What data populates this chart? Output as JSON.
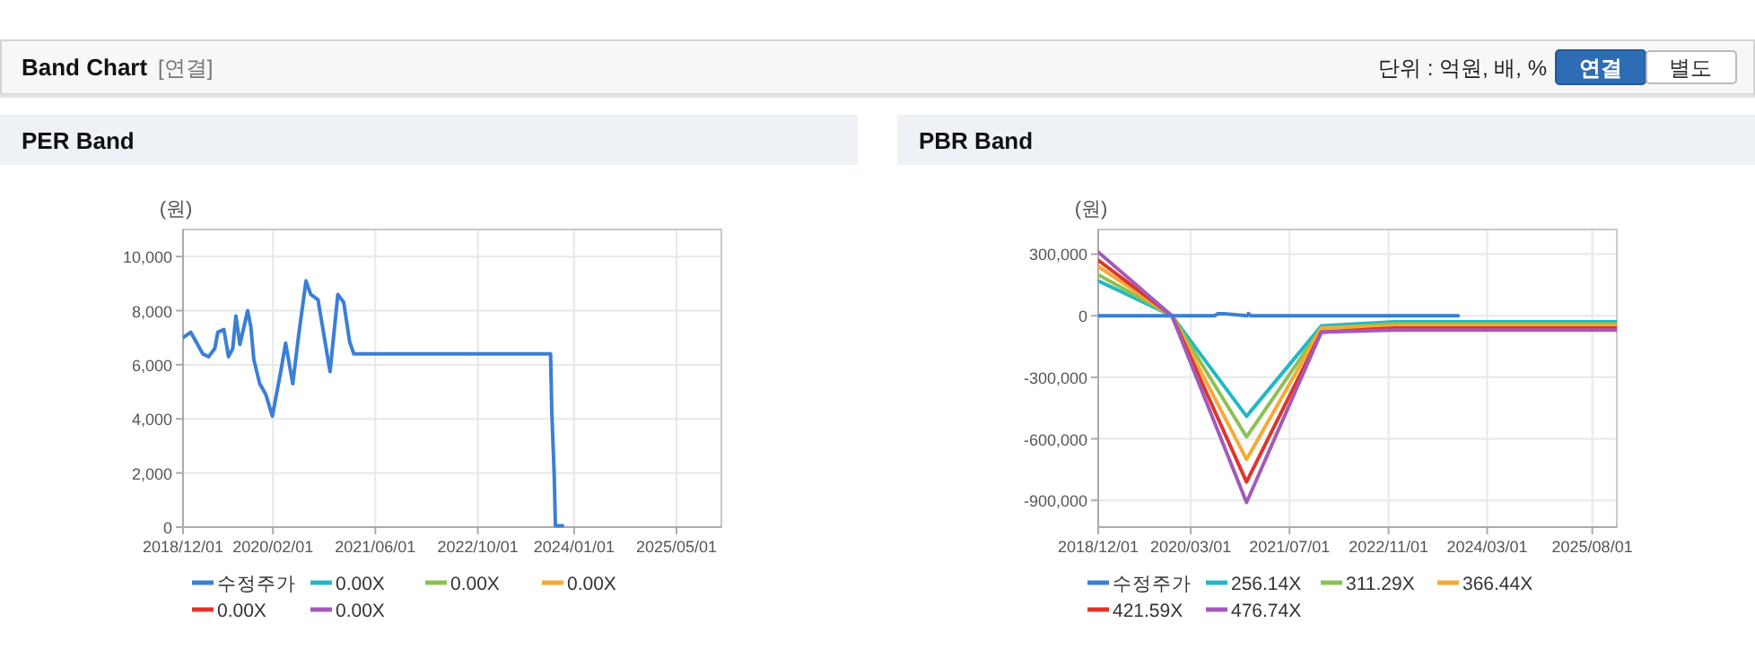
{
  "chart_data": [
    {
      "type": "other",
      "title": "Band Chart",
      "annotations": [
        "[연결]",
        "단위 : 억원, 배, %",
        "연결",
        "별도"
      ]
    },
    {
      "type": "line",
      "title": "PER Band",
      "ylabel": "(원)",
      "xlim": [
        "2018-12-01",
        "2025-11-30"
      ],
      "xticks": [
        {
          "value": "2018-12-01",
          "label": "2018/12/01"
        },
        {
          "value": "2020-02-01",
          "label": "2020/02/01"
        },
        {
          "value": "2021-06-01",
          "label": "2021/06/01"
        },
        {
          "value": "2022-10-01",
          "label": "2022/10/01"
        },
        {
          "value": "2024-01-01",
          "label": "2024/01/01"
        },
        {
          "value": "2025-05-01",
          "label": "2025/05/01"
        }
      ],
      "ylim": [
        0,
        11000
      ],
      "yticks": [
        0,
        {
          "value": 2000,
          "label": "2,000"
        },
        {
          "value": 4000,
          "label": "4,000"
        },
        {
          "value": 6000,
          "label": "6,000"
        },
        {
          "value": 8000,
          "label": "8,000"
        },
        {
          "value": 10000,
          "label": "10,000"
        }
      ],
      "grid": true,
      "legend": "bottom",
      "marker": "none",
      "line_style": "solid",
      "series": [
        {
          "name": "수정주가",
          "color": "#3a7fd5",
          "x": [
            "2018-12-01",
            "2019-01-07",
            "2019-03-05",
            "2019-04-02",
            "2019-05-01",
            "2019-05-15",
            "2019-06-13",
            "2019-07-05",
            "2019-07-25",
            "2019-08-09",
            "2019-08-28",
            "2019-10-04",
            "2019-10-19",
            "2019-11-02",
            "2019-11-30",
            "2019-12-29",
            "2020-01-29",
            "2020-03-09",
            "2020-04-01",
            "2020-05-05",
            "2020-06-02",
            "2020-07-07",
            "2020-07-29",
            "2020-09-02",
            "2020-10-29",
            "2020-12-05",
            "2021-01-02",
            "2021-01-30",
            "2021-02-19",
            "2023-09-11",
            "2023-09-17",
            "2023-09-28",
            "2023-10-04",
            "2023-11-07"
          ],
          "values": [
            7000,
            7200,
            6400,
            6300,
            6600,
            7200,
            7300,
            6300,
            6600,
            7800,
            6750,
            8000,
            7400,
            6200,
            5300,
            4900,
            4100,
            5750,
            6800,
            5300,
            7100,
            9100,
            8600,
            8400,
            5750,
            8600,
            8300,
            6850,
            6400,
            6400,
            4200,
            2000,
            50,
            50
          ]
        },
        {
          "name": "0.00X",
          "color": "#23b7c4"
        },
        {
          "name": "0.00X",
          "color": "#8cc152"
        },
        {
          "name": "0.00X",
          "color": "#f6a935"
        },
        {
          "name": "0.00X",
          "color": "#e0342a"
        },
        {
          "name": "0.00X",
          "color": "#a25ab9"
        }
      ]
    },
    {
      "type": "line",
      "title": "PBR Band",
      "ylabel": "(원)",
      "xlim": [
        "2018-12-01",
        "2025-11-30"
      ],
      "xticks": [
        {
          "value": "2018-12-01",
          "label": "2018/12/01"
        },
        {
          "value": "2020-03-01",
          "label": "2020/03/01"
        },
        {
          "value": "2021-07-01",
          "label": "2021/07/01"
        },
        {
          "value": "2022-11-01",
          "label": "2022/11/01"
        },
        {
          "value": "2024-03-01",
          "label": "2024/03/01"
        },
        {
          "value": "2025-08-01",
          "label": "2025/08/01"
        }
      ],
      "ylim": [
        -1030000,
        420000
      ],
      "yticks": [
        {
          "value": -900000,
          "label": "-900,000"
        },
        {
          "value": -600000,
          "label": "-600,000"
        },
        {
          "value": -300000,
          "label": "-300,000"
        },
        0,
        {
          "value": 300000,
          "label": "300,000"
        }
      ],
      "grid": true,
      "legend": "bottom",
      "marker": "none",
      "line_style": "solid",
      "x": [
        "2018-12-01",
        "2019-11-29",
        "2020-12-01",
        "2021-12-05",
        "2022-11-30",
        "2025-11-30"
      ],
      "series": [
        {
          "name": "수정주가",
          "color": "#3a7fd5",
          "x": [
            "2018-12-01",
            "2020-06-28",
            "2020-07-13",
            "2020-08-11",
            "2020-12-05",
            "2020-12-11",
            "2020-12-22",
            "2023-10-10"
          ],
          "values": [
            0,
            0,
            10000,
            10000,
            0,
            10000,
            0,
            0
          ]
        },
        {
          "name": "256.14X",
          "color": "#23b7c4",
          "values": [
            170000,
            0,
            -490000,
            -50000,
            -30000,
            -30000
          ]
        },
        {
          "name": "311.29X",
          "color": "#8cc152",
          "values": [
            200000,
            0,
            -590000,
            -60000,
            -40000,
            -40000
          ]
        },
        {
          "name": "366.44X",
          "color": "#f6a935",
          "values": [
            240000,
            0,
            -700000,
            -60000,
            -50000,
            -50000
          ]
        },
        {
          "name": "421.59X",
          "color": "#e0342a",
          "values": [
            270000,
            0,
            -810000,
            -80000,
            -60000,
            -60000
          ]
        },
        {
          "name": "476.74X",
          "color": "#a25ab9",
          "values": [
            310000,
            0,
            -910000,
            -80000,
            -70000,
            -70000
          ]
        }
      ]
    }
  ]
}
